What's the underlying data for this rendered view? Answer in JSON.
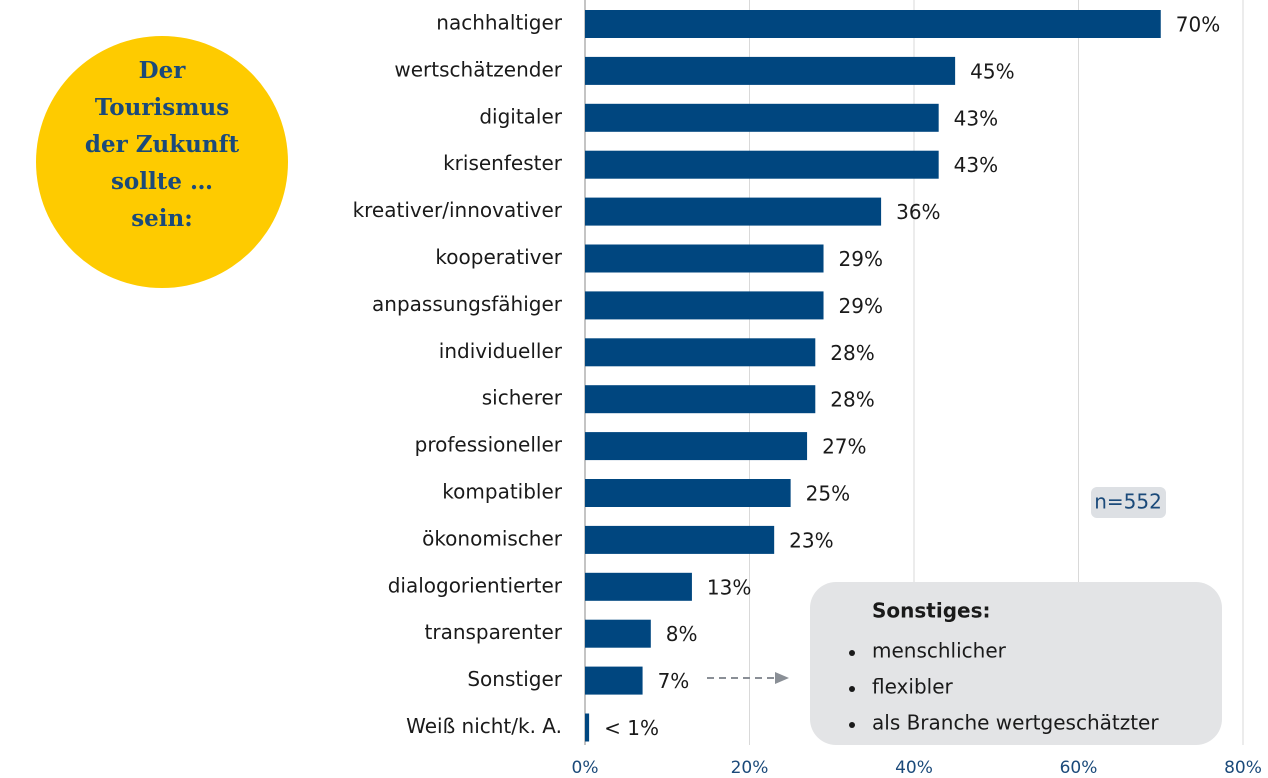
{
  "chart_data": {
    "type": "bar",
    "orientation": "horizontal",
    "categories": [
      "nachhaltiger",
      "wertschätzender",
      "digitaler",
      "krisenfester",
      "kreativer/innovativer",
      "kooperativer",
      "anpassungsfähiger",
      "individueller",
      "sicherer",
      "professioneller",
      "kompatibler",
      "ökonomischer",
      "dialogorientierter",
      "transparenter",
      "Sonstiger",
      "Weiß nicht/k. A."
    ],
    "values": [
      70,
      45,
      43,
      43,
      36,
      29,
      29,
      28,
      28,
      27,
      25,
      23,
      13,
      8,
      7,
      0.5
    ],
    "value_labels": [
      "70%",
      "45%",
      "43%",
      "43%",
      "36%",
      "29%",
      "29%",
      "28%",
      "28%",
      "27%",
      "25%",
      "23%",
      "13%",
      "8%",
      "7%",
      "< 1%"
    ],
    "color": "#00467f",
    "xlim": [
      0,
      80
    ],
    "xticks": [
      {
        "value": 0,
        "label": "0%"
      },
      {
        "value": 20,
        "label": "20%"
      },
      {
        "value": 40,
        "label": "40%"
      },
      {
        "value": 60,
        "label": "60%"
      },
      {
        "value": 80,
        "label": "80%"
      }
    ],
    "grid": true,
    "badge": [
      "Der",
      "Tourismus",
      "der Zukunft",
      "sollte …",
      "sein:"
    ],
    "sample_size": "n=552",
    "callout": {
      "title": "Sonstiges:",
      "items": [
        "menschlicher",
        "flexibler",
        "als Branche wertgeschätzter"
      ]
    }
  }
}
